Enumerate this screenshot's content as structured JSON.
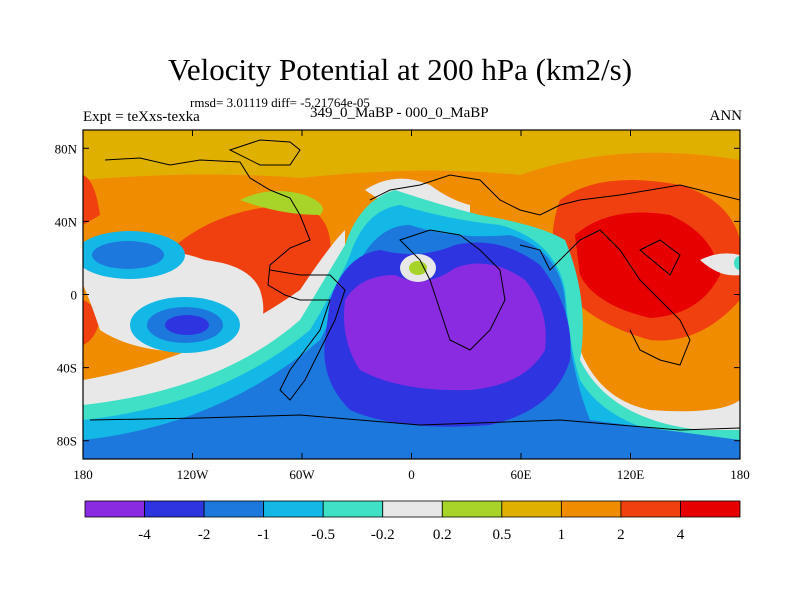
{
  "title": "Velocity Potential at 200 hPa (km2/s)",
  "stats": "rmsd= 3.01119  diff= -5.21764e-05",
  "experiment": "Expt = teXxs-texka",
  "subtitle": "349_0_MaBP - 000_0_MaBP",
  "season": "ANN",
  "chart_data": {
    "type": "heatmap",
    "projection": "cylindrical-equidistant",
    "field": "200 hPa velocity potential difference",
    "units": "km2/s",
    "x_range": [
      -180,
      180
    ],
    "y_range": [
      -90,
      90
    ],
    "x_ticks": [
      {
        "value": -180,
        "label": "180"
      },
      {
        "value": -120,
        "label": "120W"
      },
      {
        "value": -60,
        "label": "60W"
      },
      {
        "value": 0,
        "label": "0"
      },
      {
        "value": 60,
        "label": "60E"
      },
      {
        "value": 120,
        "label": "120E"
      },
      {
        "value": 180,
        "label": "180"
      }
    ],
    "y_ticks": [
      {
        "value": 80,
        "label": "80N"
      },
      {
        "value": 40,
        "label": "40N"
      },
      {
        "value": 0,
        "label": "0"
      },
      {
        "value": -40,
        "label": "40S"
      },
      {
        "value": -80,
        "label": "80S"
      }
    ],
    "levels": [
      -4,
      -2,
      -1,
      -0.5,
      -0.2,
      0.2,
      0.5,
      1,
      2,
      4
    ],
    "level_labels": [
      "-4",
      "-2",
      "-1",
      "-0.5",
      "-0.2",
      "0.2",
      "0.5",
      "1",
      "2",
      "4"
    ],
    "colors": [
      "#8a2be2",
      "#2e35e0",
      "#1c78dd",
      "#14b8e6",
      "#3fe0c6",
      "#e8e8e8",
      "#a8d42a",
      "#e0b000",
      "#f08c00",
      "#f04010",
      "#e60000"
    ],
    "features": [
      {
        "name": "Southern Atlantic / Africa minimum",
        "lon": 10,
        "lat": -15,
        "value_class": "< -4"
      },
      {
        "name": "Eastern Pacific secondary minimum",
        "lon": -127,
        "lat": -17,
        "value_class": "-4 to -2"
      },
      {
        "name": "Northeast Pacific minimum",
        "lon": -160,
        "lat": 18,
        "value_class": "-2 to -1"
      },
      {
        "name": "Asia / Western Pacific maximum",
        "lon": 125,
        "lat": 20,
        "value_class": "> 4"
      },
      {
        "name": "South America maximum",
        "lon": -75,
        "lat": 10,
        "value_class": "2 to 4"
      },
      {
        "name": "Southern Ocean",
        "lon": 0,
        "lat": -75,
        "value_class": "-2 to -1"
      }
    ]
  }
}
